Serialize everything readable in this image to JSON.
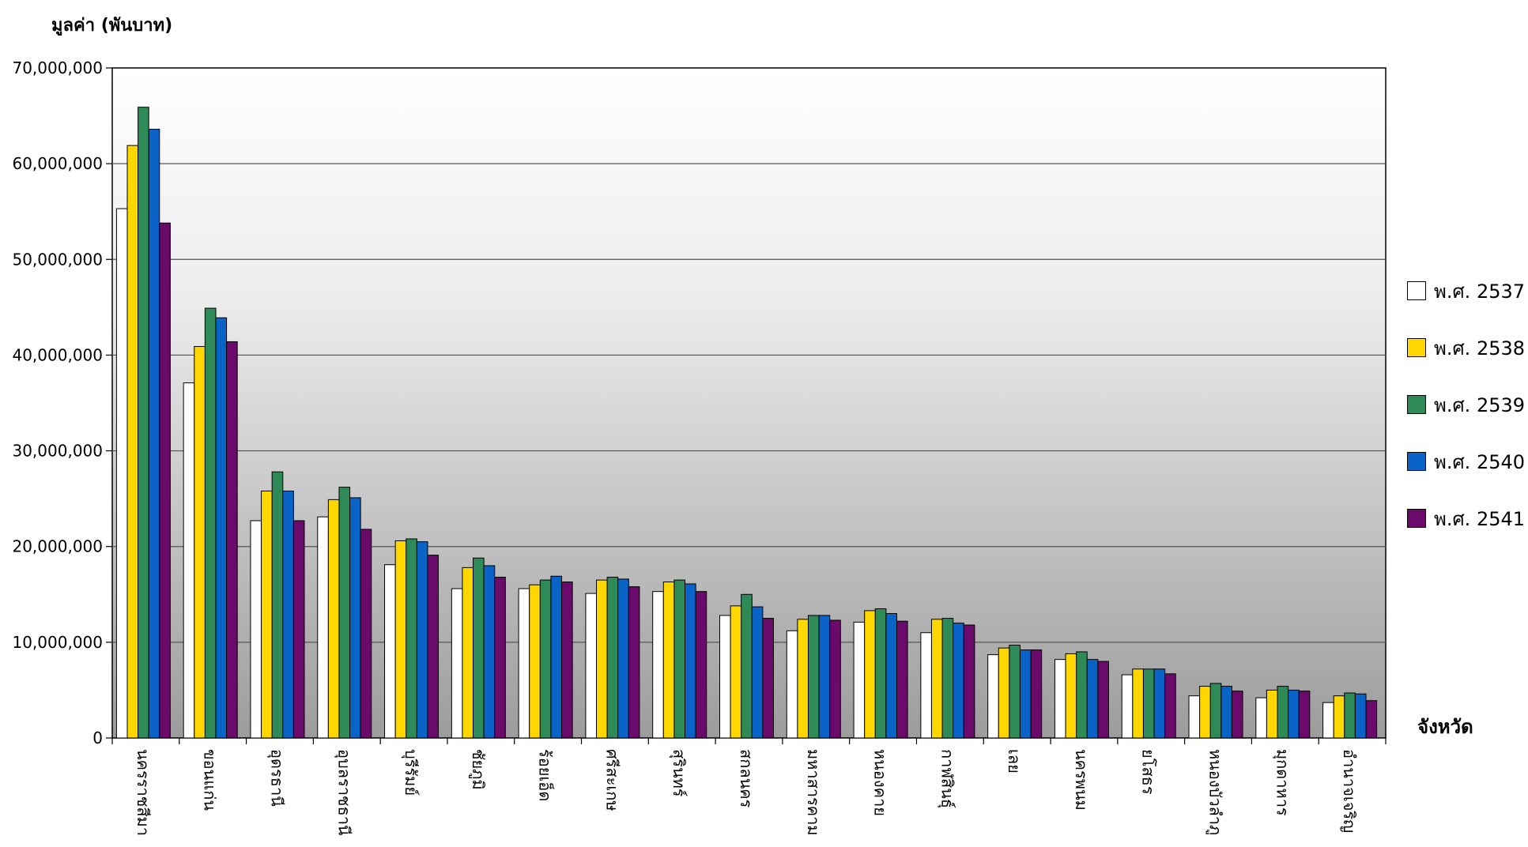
{
  "chart_data": {
    "type": "bar",
    "ylabel": "มูลค่า (พันบาท)",
    "xlabel": "จังหวัด",
    "ylim": [
      0,
      70000000
    ],
    "yticks": [
      "0",
      "10,000,000",
      "20,000,000",
      "30,000,000",
      "40,000,000",
      "50,000,000",
      "60,000,000",
      "70,000,000"
    ],
    "grid": true,
    "legend_position": "right",
    "categories": [
      "นครราชสีมา",
      "ขอนแก่น",
      "อุดรธานี",
      "อุบลราชธานี",
      "บุรีรัมย์",
      "ชัยภูมิ",
      "ร้อยเอ็ด",
      "ศรีสะเกษ",
      "สุรินทร์",
      "สกลนคร",
      "มหาสารคาม",
      "หนองคาย",
      "กาฬสินธุ์",
      "เลย",
      "นครพนม",
      "ยโสธร",
      "หนองบัวลำภู",
      "มุกดาหาร",
      "อำนาจเจริญ"
    ],
    "series": [
      {
        "name": "พ.ศ. 2537",
        "color": "#ffffff",
        "values": [
          55300000,
          37100000,
          22700000,
          23100000,
          18100000,
          15600000,
          15600000,
          15100000,
          15300000,
          12800000,
          11200000,
          12100000,
          11000000,
          8700000,
          8200000,
          6600000,
          4400000,
          4200000,
          3700000
        ]
      },
      {
        "name": "พ.ศ. 2538",
        "color": "#ffd700",
        "values": [
          61900000,
          40900000,
          25800000,
          24900000,
          20600000,
          17800000,
          16000000,
          16500000,
          16300000,
          13800000,
          12400000,
          13300000,
          12400000,
          9400000,
          8800000,
          7200000,
          5400000,
          5000000,
          4400000
        ]
      },
      {
        "name": "พ.ศ. 2539",
        "color": "#2e8b57",
        "values": [
          65900000,
          44900000,
          27800000,
          26200000,
          20800000,
          18800000,
          16500000,
          16800000,
          16500000,
          15000000,
          12800000,
          13500000,
          12500000,
          9700000,
          9000000,
          7200000,
          5700000,
          5400000,
          4700000
        ]
      },
      {
        "name": "พ.ศ. 2540",
        "color": "#0a64c8",
        "values": [
          63600000,
          43900000,
          25800000,
          25100000,
          20500000,
          18000000,
          16900000,
          16600000,
          16100000,
          13700000,
          12800000,
          13000000,
          12000000,
          9200000,
          8200000,
          7200000,
          5400000,
          5000000,
          4600000
        ]
      },
      {
        "name": "พ.ศ. 2541",
        "color": "#6a0a6a",
        "values": [
          53800000,
          41400000,
          22700000,
          21800000,
          19100000,
          16800000,
          16300000,
          15800000,
          15300000,
          12500000,
          12300000,
          12200000,
          11800000,
          9200000,
          8000000,
          6700000,
          4900000,
          4900000,
          3900000
        ]
      }
    ]
  }
}
